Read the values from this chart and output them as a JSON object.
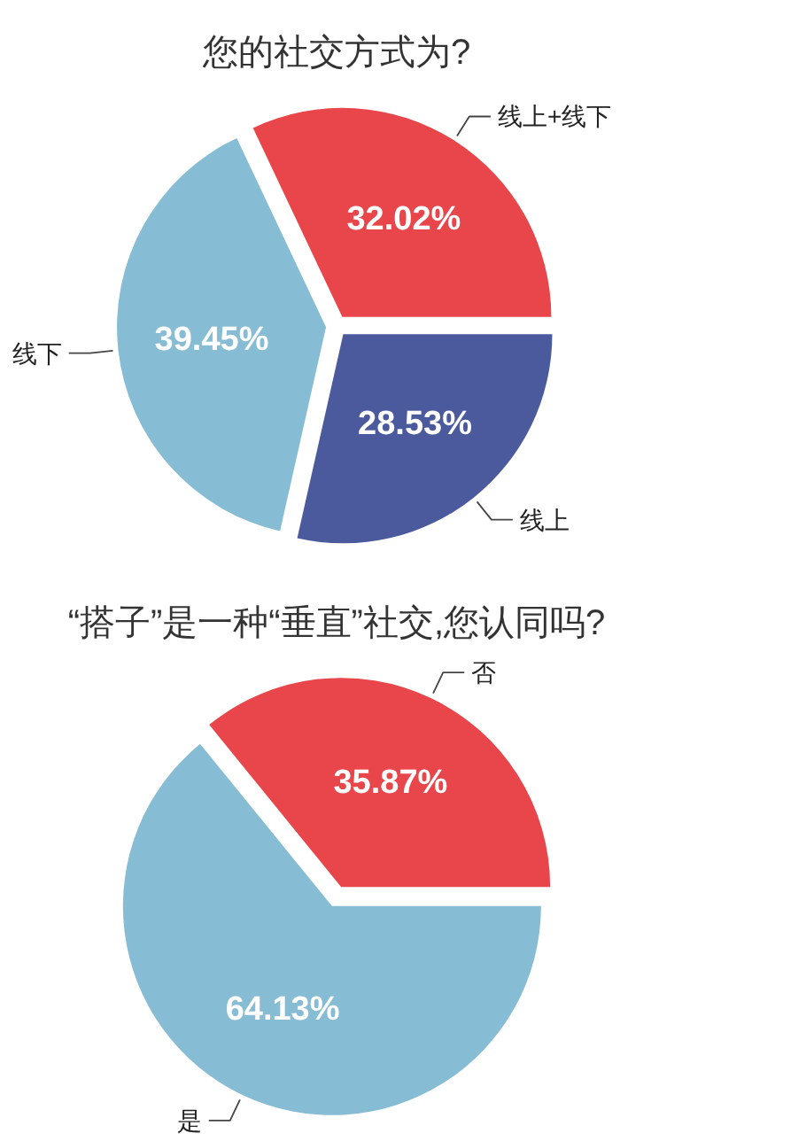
{
  "chart_data": [
    {
      "type": "pie",
      "title": "您的社交方式为?",
      "categories": [
        "线上+线下",
        "线上",
        "线下"
      ],
      "values": [
        32.02,
        28.53,
        39.45
      ],
      "colors": [
        "#e8464b",
        "#4b5a9c",
        "#87bdd4"
      ],
      "value_labels": [
        "32.02%",
        "28.53%",
        "39.45%"
      ]
    },
    {
      "type": "pie",
      "title": "“搭子”是一种“垂直”社交,您认同吗?",
      "categories": [
        "否",
        "是"
      ],
      "values": [
        35.87,
        64.13
      ],
      "colors": [
        "#e8464b",
        "#87bdd4"
      ],
      "value_labels": [
        "35.87%",
        "64.13%"
      ]
    }
  ]
}
